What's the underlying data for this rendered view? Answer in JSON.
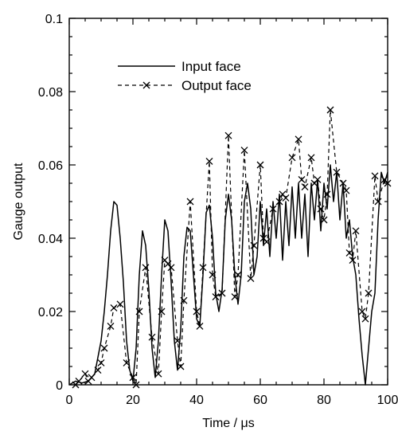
{
  "chart_data": {
    "type": "line",
    "title": "",
    "xlabel": "Time / μs",
    "ylabel": "Gauge output",
    "xlim": [
      0,
      100
    ],
    "ylim": [
      0,
      0.1
    ],
    "x_ticks": [
      "0",
      "20",
      "40",
      "60",
      "80",
      "100"
    ],
    "y_ticks": [
      "0",
      "0.02",
      "0.04",
      "0.06",
      "0.08",
      "0.1"
    ],
    "grid": false,
    "legend_position": "upper-center",
    "series": [
      {
        "name": "Input face",
        "style": "solid",
        "marker": "none",
        "color": "#000000",
        "points": [
          [
            0,
            0
          ],
          [
            2,
            0.001
          ],
          [
            4,
            0.0005
          ],
          [
            6,
            0.001
          ],
          [
            8,
            0.003
          ],
          [
            10,
            0.012
          ],
          [
            11,
            0.02
          ],
          [
            12,
            0.03
          ],
          [
            13,
            0.042
          ],
          [
            14,
            0.05
          ],
          [
            15,
            0.049
          ],
          [
            16,
            0.04
          ],
          [
            17,
            0.028
          ],
          [
            18,
            0.012
          ],
          [
            19,
            0.004
          ],
          [
            20,
            0.001
          ],
          [
            21,
            0.01
          ],
          [
            22,
            0.03
          ],
          [
            23,
            0.042
          ],
          [
            24,
            0.038
          ],
          [
            25,
            0.026
          ],
          [
            26,
            0.01
          ],
          [
            27,
            0.002
          ],
          [
            28,
            0.012
          ],
          [
            29,
            0.03
          ],
          [
            30,
            0.045
          ],
          [
            31,
            0.042
          ],
          [
            32,
            0.028
          ],
          [
            33,
            0.012
          ],
          [
            34,
            0.004
          ],
          [
            35,
            0.015
          ],
          [
            36,
            0.035
          ],
          [
            37,
            0.043
          ],
          [
            38,
            0.042
          ],
          [
            39,
            0.03
          ],
          [
            40,
            0.018
          ],
          [
            41,
            0.016
          ],
          [
            42,
            0.03
          ],
          [
            43,
            0.047
          ],
          [
            44,
            0.049
          ],
          [
            45,
            0.04
          ],
          [
            46,
            0.025
          ],
          [
            47,
            0.02
          ],
          [
            48,
            0.026
          ],
          [
            49,
            0.045
          ],
          [
            50,
            0.052
          ],
          [
            51,
            0.045
          ],
          [
            52,
            0.03
          ],
          [
            53,
            0.022
          ],
          [
            54,
            0.03
          ],
          [
            55,
            0.05
          ],
          [
            56,
            0.055
          ],
          [
            57,
            0.048
          ],
          [
            58,
            0.03
          ],
          [
            59,
            0.035
          ],
          [
            60,
            0.05
          ],
          [
            61,
            0.038
          ],
          [
            62,
            0.048
          ],
          [
            63,
            0.035
          ],
          [
            64,
            0.05
          ],
          [
            65,
            0.04
          ],
          [
            66,
            0.052
          ],
          [
            67,
            0.034
          ],
          [
            68,
            0.05
          ],
          [
            69,
            0.038
          ],
          [
            70,
            0.054
          ],
          [
            71,
            0.04
          ],
          [
            72,
            0.055
          ],
          [
            73,
            0.04
          ],
          [
            74,
            0.052
          ],
          [
            75,
            0.035
          ],
          [
            76,
            0.055
          ],
          [
            77,
            0.045
          ],
          [
            78,
            0.056
          ],
          [
            79,
            0.042
          ],
          [
            80,
            0.055
          ],
          [
            81,
            0.048
          ],
          [
            82,
            0.06
          ],
          [
            83,
            0.05
          ],
          [
            84,
            0.058
          ],
          [
            85,
            0.045
          ],
          [
            86,
            0.055
          ],
          [
            87,
            0.04
          ],
          [
            88,
            0.045
          ],
          [
            89,
            0.035
          ],
          [
            90,
            0.03
          ],
          [
            91,
            0.018
          ],
          [
            92,
            0.008
          ],
          [
            93,
            0.0
          ],
          [
            94,
            0.01
          ],
          [
            95,
            0.02
          ],
          [
            96,
            0.025
          ],
          [
            97,
            0.045
          ],
          [
            98,
            0.058
          ],
          [
            99,
            0.055
          ],
          [
            100,
            0.058
          ]
        ]
      },
      {
        "name": "Output face",
        "style": "dashed",
        "marker": "x",
        "color": "#000000",
        "points": [
          [
            2,
            0.0
          ],
          [
            3,
            0.001
          ],
          [
            5,
            0.003
          ],
          [
            6,
            0.001
          ],
          [
            7,
            0.002
          ],
          [
            9,
            0.004
          ],
          [
            10,
            0.006
          ],
          [
            11,
            0.01
          ],
          [
            13,
            0.016
          ],
          [
            14,
            0.021
          ],
          [
            16,
            0.022
          ],
          [
            18,
            0.006
          ],
          [
            20,
            0.002
          ],
          [
            21,
            0.0
          ],
          [
            22,
            0.02
          ],
          [
            24,
            0.032
          ],
          [
            26,
            0.013
          ],
          [
            28,
            0.003
          ],
          [
            29,
            0.02
          ],
          [
            30,
            0.034
          ],
          [
            31,
            0.033
          ],
          [
            32,
            0.032
          ],
          [
            34,
            0.012
          ],
          [
            35,
            0.005
          ],
          [
            36,
            0.023
          ],
          [
            38,
            0.05
          ],
          [
            40,
            0.02
          ],
          [
            41,
            0.016
          ],
          [
            42,
            0.032
          ],
          [
            44,
            0.061
          ],
          [
            45,
            0.03
          ],
          [
            46,
            0.024
          ],
          [
            48,
            0.025
          ],
          [
            50,
            0.068
          ],
          [
            52,
            0.024
          ],
          [
            53,
            0.03
          ],
          [
            55,
            0.064
          ],
          [
            57,
            0.029
          ],
          [
            58,
            0.038
          ],
          [
            60,
            0.06
          ],
          [
            61,
            0.04
          ],
          [
            62,
            0.039
          ],
          [
            64,
            0.048
          ],
          [
            66,
            0.05
          ],
          [
            67,
            0.052
          ],
          [
            68,
            0.051
          ],
          [
            70,
            0.062
          ],
          [
            72,
            0.067
          ],
          [
            73,
            0.056
          ],
          [
            74,
            0.054
          ],
          [
            76,
            0.062
          ],
          [
            77,
            0.055
          ],
          [
            78,
            0.056
          ],
          [
            79,
            0.048
          ],
          [
            80,
            0.045
          ],
          [
            81,
            0.052
          ],
          [
            82,
            0.075
          ],
          [
            84,
            0.058
          ],
          [
            86,
            0.055
          ],
          [
            87,
            0.053
          ],
          [
            88,
            0.036
          ],
          [
            89,
            0.034
          ],
          [
            90,
            0.042
          ],
          [
            92,
            0.02
          ],
          [
            93,
            0.018
          ],
          [
            94,
            0.025
          ],
          [
            96,
            0.057
          ],
          [
            97,
            0.05
          ],
          [
            99,
            0.056
          ],
          [
            100,
            0.055
          ]
        ]
      }
    ]
  }
}
